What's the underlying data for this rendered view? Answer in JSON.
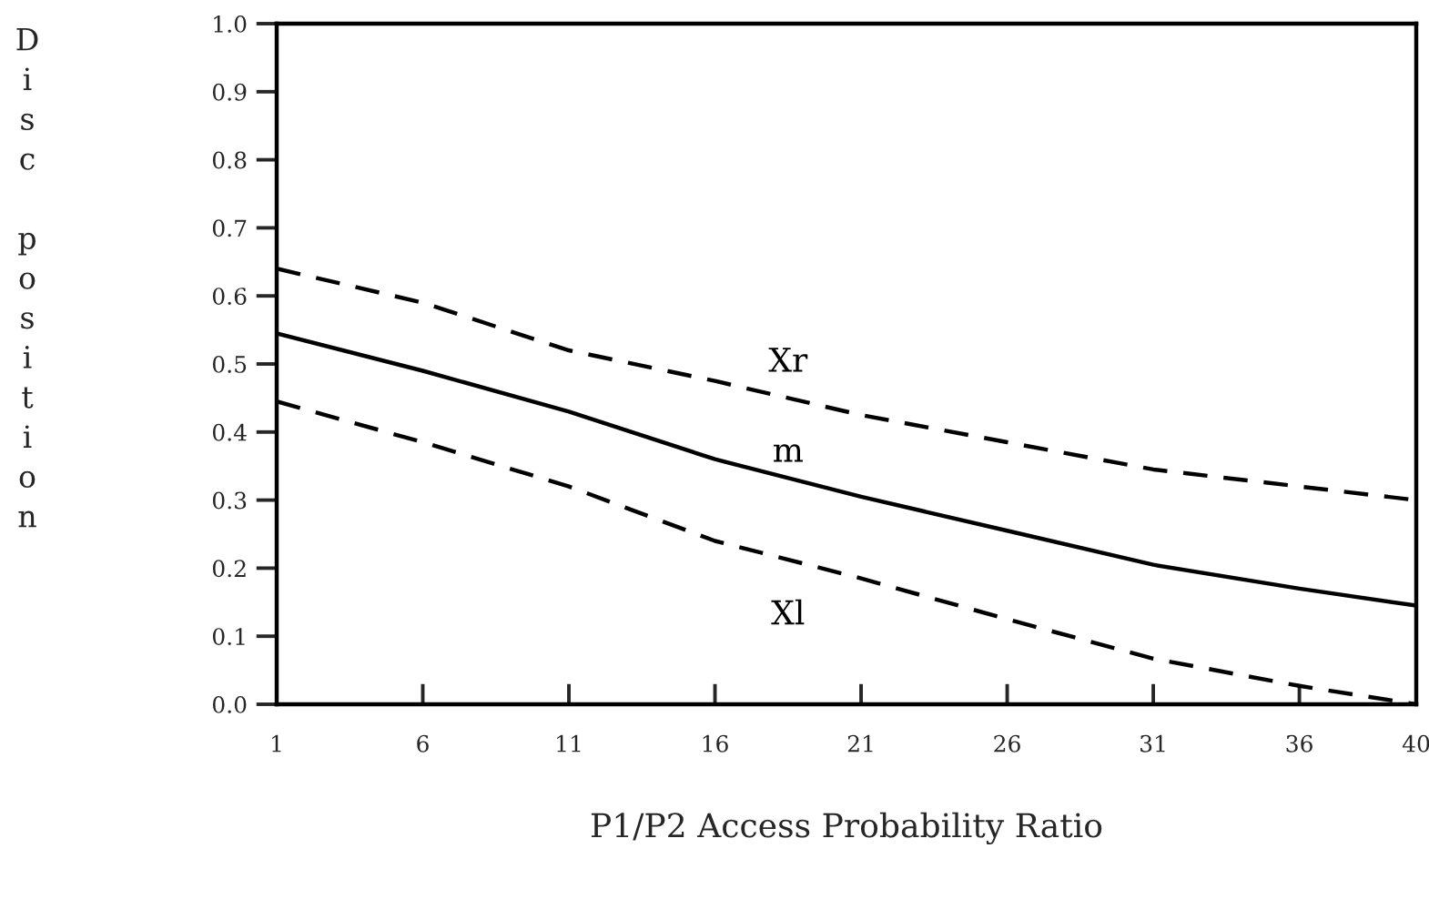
{
  "chart_data": {
    "type": "line",
    "xlabel": "P1/P2 Access Probability Ratio",
    "ylabel": "Disc position",
    "x": [
      1,
      6,
      11,
      16,
      21,
      26,
      31,
      36,
      40
    ],
    "series": [
      {
        "name": "Xr",
        "color": "#000000",
        "line_style": "dashed",
        "values": [
          0.64,
          0.59,
          0.52,
          0.475,
          0.425,
          0.385,
          0.345,
          0.32,
          0.3
        ]
      },
      {
        "name": "m",
        "color": "#000000",
        "line_style": "solid",
        "values": [
          0.545,
          0.49,
          0.43,
          0.36,
          0.305,
          0.255,
          0.205,
          0.17,
          0.145
        ]
      },
      {
        "name": "Xl",
        "color": "#000000",
        "line_style": "dashed",
        "values": [
          0.445,
          0.385,
          0.32,
          0.24,
          0.185,
          0.125,
          0.067,
          0.027,
          0.0
        ]
      }
    ],
    "xlim": [
      1,
      40
    ],
    "xticks": [
      1,
      6,
      11,
      16,
      21,
      26,
      31,
      36,
      40
    ],
    "ylim": [
      0,
      1
    ],
    "yticks": [
      {
        "value": 0,
        "label": "0.0"
      },
      0.1,
      0.2,
      0.3,
      0.4,
      0.5,
      0.6,
      0.7,
      0.8,
      0.9,
      {
        "value": 1,
        "label": "1.0"
      }
    ],
    "grid": false,
    "legend": false
  }
}
